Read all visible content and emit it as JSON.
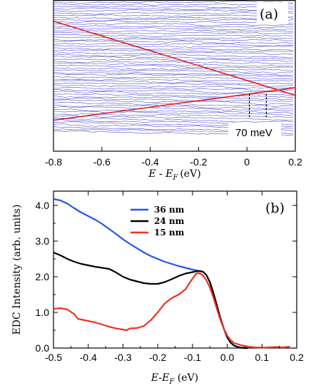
{
  "chart_data": [
    {
      "panel": "(a)",
      "type": "line",
      "xlabel_main": "E - E",
      "xlabel_sub": "F",
      "xlabel_unit": "(eV)",
      "xlim": [
        -0.8,
        0.2
      ],
      "x_ticks": [
        -0.8,
        -0.6,
        -0.4,
        -0.2,
        0,
        0.2
      ],
      "x_tick_labels": [
        "-0.8",
        "-0.6",
        "-0.4",
        "-0.2",
        "0",
        "0.2"
      ],
      "annotation": "70 meV",
      "trace_color": "#3333cc",
      "fit_color": "#e02020",
      "fit_lines": [
        {
          "x": [
            -0.8,
            0.2
          ],
          "y": [
            0.86,
            0.37
          ]
        },
        {
          "x": [
            -0.8,
            0.2
          ],
          "y": [
            0.205,
            0.42
          ]
        }
      ],
      "markers_x": [
        0.01,
        0.08
      ],
      "ylim": [
        0,
        1
      ]
    },
    {
      "panel": "(b)",
      "type": "line",
      "xlabel": "E-E",
      "xlabel_sub": "F",
      "xlabel_unit": " (eV)",
      "ylabel": "EDC Intensity (arb. units)",
      "xlim": [
        -0.5,
        0.2
      ],
      "ylim": [
        0,
        4.4
      ],
      "x_ticks": [
        -0.5,
        -0.4,
        -0.3,
        -0.2,
        -0.1,
        0.0,
        0.1,
        0.2
      ],
      "x_tick_labels": [
        "-0.5",
        "-0.4",
        "-0.3",
        "-0.2",
        "-0.1",
        "0.0",
        "0.1",
        "0.2"
      ],
      "y_ticks": [
        0,
        1,
        2,
        3,
        4
      ],
      "y_tick_labels": [
        "0.0",
        "1.0",
        "2.0",
        "3.0",
        "4.0"
      ],
      "series": [
        {
          "name": "36 nm",
          "color": "#2255ee",
          "x": [
            -0.5,
            -0.48,
            -0.46,
            -0.44,
            -0.42,
            -0.4,
            -0.38,
            -0.36,
            -0.34,
            -0.32,
            -0.3,
            -0.28,
            -0.26,
            -0.24,
            -0.22,
            -0.2,
            -0.18,
            -0.16,
            -0.14,
            -0.12,
            -0.1,
            -0.09,
            -0.08,
            -0.07,
            -0.06,
            -0.05,
            -0.04,
            -0.03,
            -0.02,
            -0.01,
            0.0,
            0.01,
            0.02,
            0.03,
            0.04,
            0.05,
            0.06
          ],
          "y": [
            4.18,
            4.14,
            4.05,
            3.92,
            3.8,
            3.7,
            3.6,
            3.48,
            3.34,
            3.2,
            3.05,
            2.92,
            2.8,
            2.68,
            2.58,
            2.5,
            2.42,
            2.36,
            2.3,
            2.25,
            2.2,
            2.18,
            2.16,
            2.14,
            2.05,
            1.85,
            1.55,
            1.2,
            0.85,
            0.55,
            0.3,
            0.15,
            0.07,
            0.03,
            0.01,
            0.0,
            0.0
          ]
        },
        {
          "name": "24 nm",
          "color": "#000000",
          "x": [
            -0.5,
            -0.48,
            -0.46,
            -0.44,
            -0.42,
            -0.4,
            -0.38,
            -0.36,
            -0.34,
            -0.32,
            -0.3,
            -0.28,
            -0.26,
            -0.24,
            -0.22,
            -0.2,
            -0.18,
            -0.16,
            -0.14,
            -0.12,
            -0.1,
            -0.09,
            -0.08,
            -0.07,
            -0.06,
            -0.05,
            -0.04,
            -0.03,
            -0.02,
            -0.01,
            0.0,
            0.01,
            0.02,
            0.03,
            0.04,
            0.05,
            0.06
          ],
          "y": [
            2.68,
            2.6,
            2.5,
            2.42,
            2.36,
            2.32,
            2.28,
            2.25,
            2.22,
            2.12,
            2.0,
            1.92,
            1.87,
            1.82,
            1.8,
            1.8,
            1.85,
            1.93,
            2.02,
            2.09,
            2.13,
            2.15,
            2.16,
            2.14,
            2.05,
            1.85,
            1.55,
            1.2,
            0.85,
            0.55,
            0.3,
            0.15,
            0.07,
            0.03,
            0.01,
            0.0,
            0.0
          ]
        },
        {
          "name": "15 nm",
          "color": "#ee3322",
          "x": [
            -0.5,
            -0.48,
            -0.46,
            -0.44,
            -0.43,
            -0.42,
            -0.4,
            -0.38,
            -0.36,
            -0.34,
            -0.32,
            -0.3,
            -0.29,
            -0.28,
            -0.26,
            -0.24,
            -0.22,
            -0.2,
            -0.18,
            -0.16,
            -0.14,
            -0.12,
            -0.1,
            -0.09,
            -0.08,
            -0.07,
            -0.06,
            -0.05,
            -0.04,
            -0.03,
            -0.02,
            -0.01,
            0.0,
            0.01,
            0.02,
            0.04,
            0.06,
            0.08,
            0.1,
            0.12,
            0.14,
            0.16,
            0.18
          ],
          "y": [
            1.1,
            1.12,
            1.08,
            0.95,
            0.82,
            0.8,
            0.76,
            0.72,
            0.66,
            0.6,
            0.55,
            0.52,
            0.5,
            0.55,
            0.56,
            0.62,
            0.78,
            1.0,
            1.25,
            1.4,
            1.5,
            1.65,
            1.95,
            2.08,
            2.1,
            2.04,
            1.9,
            1.7,
            1.42,
            1.1,
            0.8,
            0.55,
            0.35,
            0.22,
            0.14,
            0.08,
            0.04,
            0.02,
            0.01,
            0.02,
            0.03,
            0.02,
            0.04
          ]
        }
      ]
    }
  ]
}
